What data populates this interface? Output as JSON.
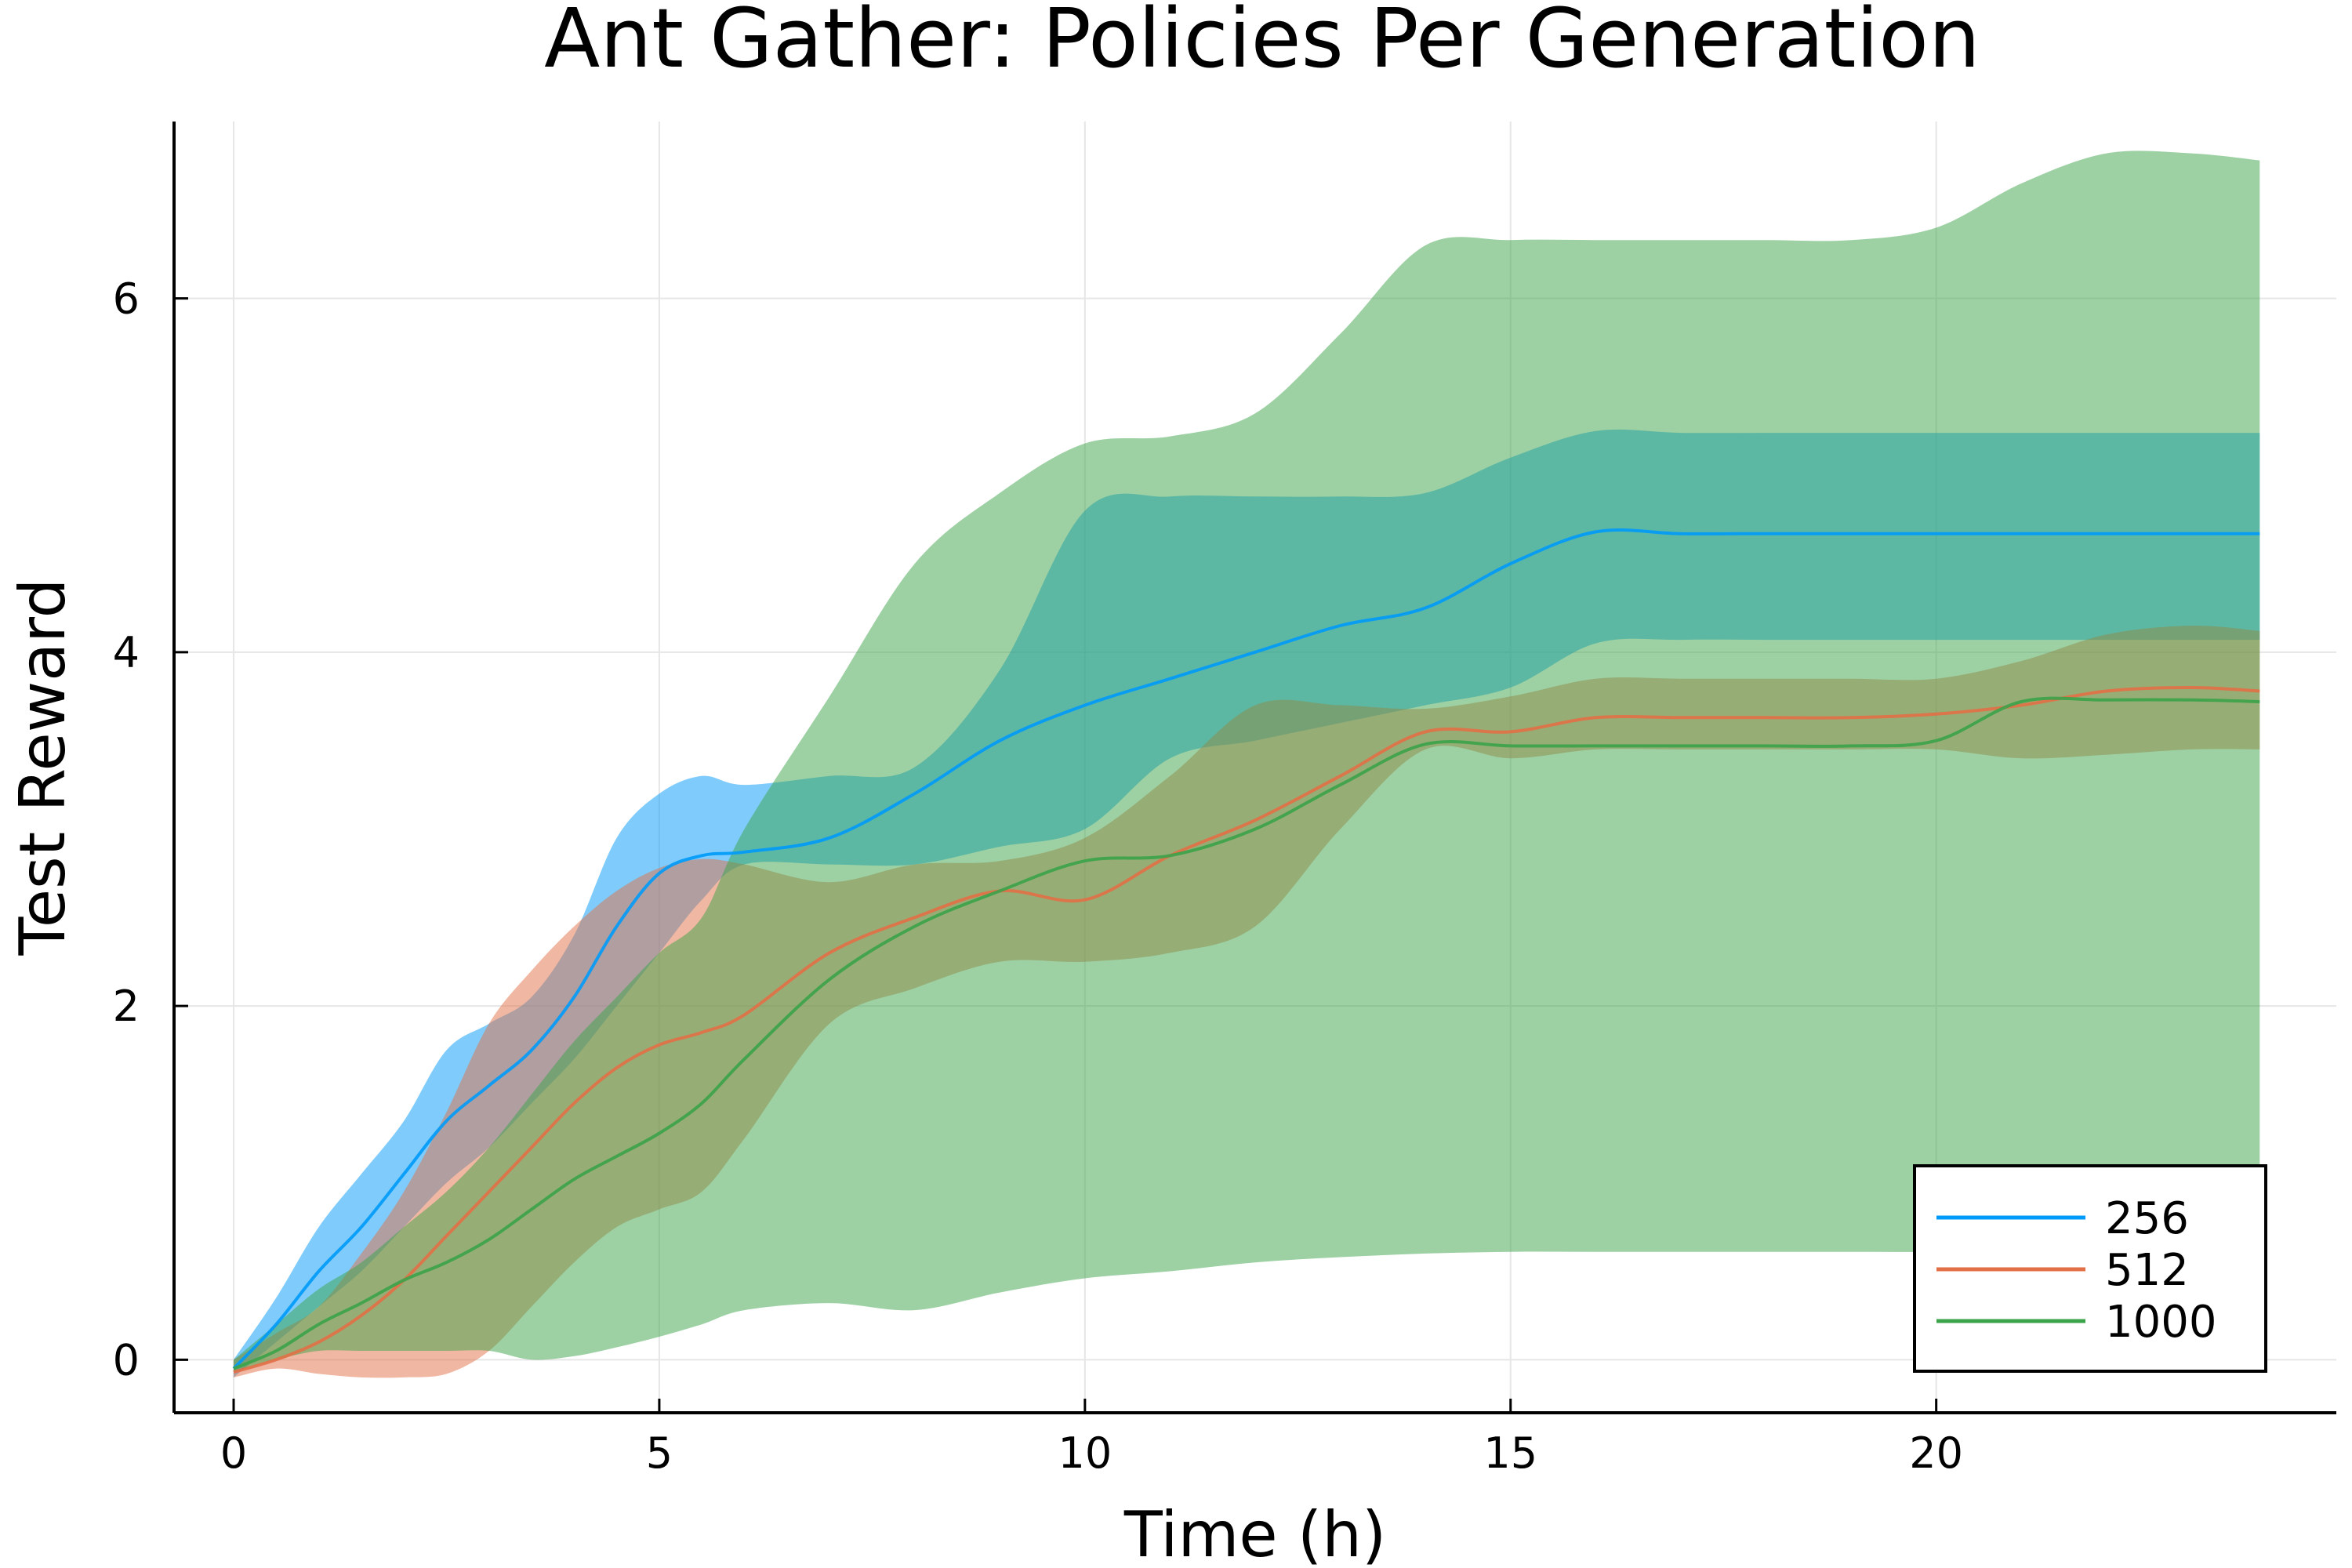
{
  "chart_data": {
    "type": "line",
    "title": "Ant Gather: Policies Per Generation",
    "xlabel": "Time (h)",
    "ylabel": "Test Reward",
    "xlim": [
      -0.7,
      24.7
    ],
    "ylim": [
      -0.3,
      7.0
    ],
    "xticks": [
      0,
      5,
      10,
      15,
      20
    ],
    "yticks": [
      0,
      2,
      4,
      6
    ],
    "grid": true,
    "legend_position": "bottom-right",
    "series": [
      {
        "name": "256",
        "color": "#009af9",
        "band_opacity": 0.5,
        "x": [
          0,
          0.5,
          1,
          1.5,
          2,
          2.5,
          3,
          3.5,
          4,
          4.5,
          5,
          5.5,
          6,
          7,
          8,
          9,
          10,
          11,
          12,
          13,
          14,
          15,
          16,
          17,
          18,
          19,
          20,
          21,
          22,
          23,
          23.8
        ],
        "y": [
          -0.05,
          0.2,
          0.5,
          0.75,
          1.05,
          1.35,
          1.55,
          1.75,
          2.05,
          2.45,
          2.75,
          2.85,
          2.87,
          2.95,
          3.2,
          3.5,
          3.7,
          3.85,
          4.0,
          4.15,
          4.25,
          4.5,
          4.68,
          4.67,
          4.67,
          4.67,
          4.67,
          4.67,
          4.67,
          4.67,
          4.67
        ],
        "lower": [
          -0.1,
          0.1,
          0.3,
          0.5,
          0.75,
          1.0,
          1.2,
          1.45,
          1.7,
          2.0,
          2.3,
          2.6,
          2.8,
          2.8,
          2.8,
          2.9,
          3.0,
          3.4,
          3.5,
          3.6,
          3.7,
          3.8,
          4.05,
          4.07,
          4.07,
          4.07,
          4.07,
          4.07,
          4.07,
          4.07,
          4.07
        ],
        "upper": [
          0.0,
          0.35,
          0.75,
          1.05,
          1.35,
          1.75,
          1.9,
          2.05,
          2.4,
          2.95,
          3.2,
          3.3,
          3.25,
          3.3,
          3.35,
          3.9,
          4.8,
          4.88,
          4.88,
          4.88,
          4.9,
          5.1,
          5.25,
          5.24,
          5.24,
          5.24,
          5.24,
          5.24,
          5.24,
          5.24,
          5.24
        ]
      },
      {
        "name": "512",
        "color": "#e26f46",
        "band_opacity": 0.5,
        "x": [
          0,
          0.5,
          1,
          1.5,
          2,
          2.5,
          3,
          3.5,
          4,
          4.5,
          5,
          5.5,
          6,
          7,
          8,
          9,
          10,
          11,
          12,
          13,
          14,
          15,
          16,
          17,
          18,
          19,
          20,
          21,
          22,
          23,
          23.8
        ],
        "y": [
          -0.07,
          0.0,
          0.1,
          0.25,
          0.45,
          0.7,
          0.95,
          1.2,
          1.45,
          1.65,
          1.78,
          1.85,
          1.95,
          2.3,
          2.5,
          2.65,
          2.6,
          2.85,
          3.05,
          3.3,
          3.55,
          3.55,
          3.63,
          3.63,
          3.63,
          3.63,
          3.65,
          3.7,
          3.78,
          3.8,
          3.78
        ],
        "lower": [
          -0.1,
          -0.05,
          -0.08,
          -0.1,
          -0.1,
          -0.08,
          0.05,
          0.3,
          0.55,
          0.75,
          0.85,
          0.95,
          1.25,
          1.9,
          2.1,
          2.25,
          2.25,
          2.3,
          2.45,
          3.0,
          3.45,
          3.4,
          3.45,
          3.45,
          3.45,
          3.45,
          3.45,
          3.4,
          3.42,
          3.45,
          3.45
        ],
        "upper": [
          0.0,
          0.15,
          0.3,
          0.6,
          0.95,
          1.4,
          1.9,
          2.2,
          2.45,
          2.65,
          2.78,
          2.83,
          2.8,
          2.7,
          2.8,
          2.82,
          2.95,
          3.3,
          3.7,
          3.7,
          3.68,
          3.75,
          3.85,
          3.85,
          3.85,
          3.85,
          3.85,
          3.95,
          4.1,
          4.15,
          4.12
        ]
      },
      {
        "name": "1000",
        "color": "#3ba34a",
        "band_opacity": 0.5,
        "x": [
          0,
          0.5,
          1,
          1.5,
          2,
          2.5,
          3,
          3.5,
          4,
          4.5,
          5,
          5.5,
          6,
          7,
          8,
          9,
          10,
          11,
          12,
          13,
          14,
          15,
          16,
          17,
          18,
          19,
          20,
          21,
          22,
          23,
          23.8
        ],
        "y": [
          -0.05,
          0.05,
          0.2,
          0.32,
          0.45,
          0.55,
          0.68,
          0.85,
          1.02,
          1.15,
          1.28,
          1.45,
          1.7,
          2.15,
          2.45,
          2.65,
          2.82,
          2.85,
          3.0,
          3.25,
          3.48,
          3.47,
          3.47,
          3.47,
          3.47,
          3.47,
          3.5,
          3.72,
          3.73,
          3.73,
          3.72
        ],
        "lower": [
          -0.07,
          0.0,
          0.05,
          0.05,
          0.05,
          0.05,
          0.05,
          0.0,
          0.02,
          0.07,
          0.13,
          0.2,
          0.28,
          0.32,
          0.28,
          0.38,
          0.46,
          0.5,
          0.55,
          0.58,
          0.6,
          0.61,
          0.61,
          0.61,
          0.61,
          0.61,
          0.61,
          0.62,
          0.64,
          0.66,
          0.67
        ],
        "upper": [
          0.0,
          0.2,
          0.4,
          0.55,
          0.75,
          0.95,
          1.2,
          1.5,
          1.8,
          2.05,
          2.3,
          2.5,
          3.0,
          3.75,
          4.5,
          4.9,
          5.18,
          5.22,
          5.35,
          5.8,
          6.3,
          6.33,
          6.33,
          6.33,
          6.33,
          6.33,
          6.4,
          6.65,
          6.82,
          6.82,
          6.78
        ]
      }
    ]
  }
}
